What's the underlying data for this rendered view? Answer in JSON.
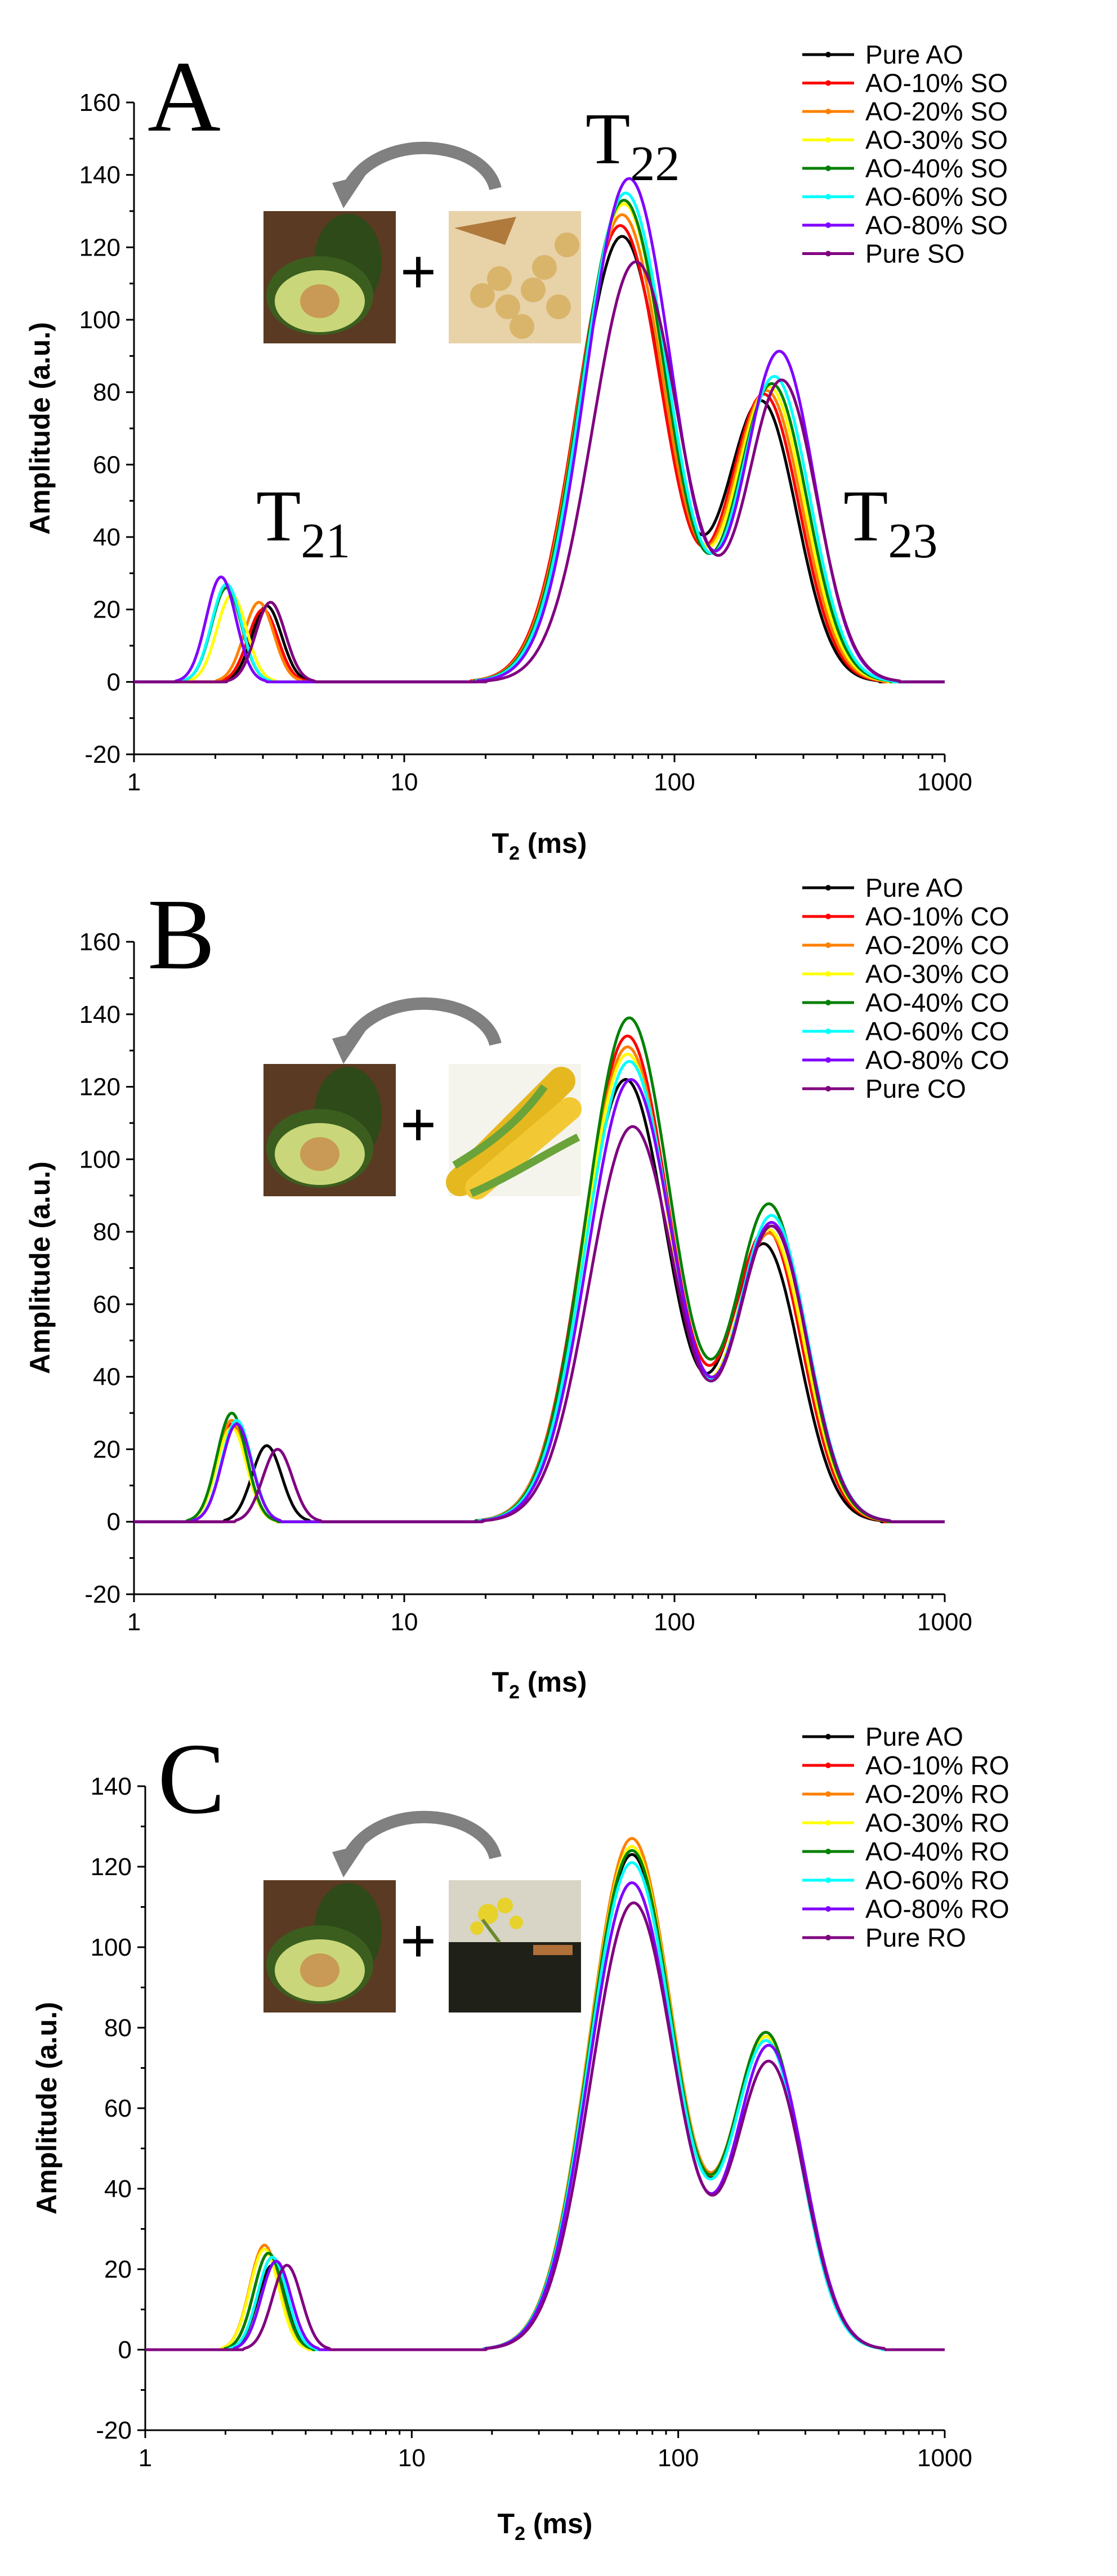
{
  "chart_data": [
    {
      "panel": "A",
      "type": "line",
      "xlabel": "T₂ (ms)",
      "ylabel": "Amplitude (a.u.)",
      "xscale": "log",
      "xlim": [
        1,
        1000
      ],
      "ylim": [
        -20,
        160
      ],
      "yticks": [
        -20,
        0,
        20,
        40,
        60,
        80,
        100,
        120,
        140,
        160
      ],
      "xticks": [
        1,
        10,
        100,
        1000
      ],
      "xtick_labels": [
        "1",
        "10",
        "100",
        "1000"
      ],
      "peak_labels": [
        {
          "base": "T",
          "sub": "21"
        },
        {
          "base": "T",
          "sub": "22"
        },
        {
          "base": "T",
          "sub": "23"
        }
      ],
      "image_icons": [
        "avocado-image",
        "soybean-image"
      ],
      "plus_sign": "+",
      "series": [
        {
          "name": "Pure AO",
          "color": "#000000",
          "peaks": [
            [
              3.1,
              21,
              0.055
            ],
            [
              64,
              123,
              0.16
            ],
            [
              210,
              77,
              0.13
            ]
          ]
        },
        {
          "name": "AO-10% SO",
          "color": "#ff0000",
          "peaks": [
            [
              3.0,
              20,
              0.055
            ],
            [
              63,
              126,
              0.16
            ],
            [
              215,
              79,
              0.13
            ]
          ]
        },
        {
          "name": "AO-20% SO",
          "color": "#ff8000",
          "peaks": [
            [
              2.9,
              22,
              0.055
            ],
            [
              64,
              129,
              0.16
            ],
            [
              220,
              80,
              0.13
            ]
          ]
        },
        {
          "name": "AO-30% SO",
          "color": "#ffff00",
          "peaks": [
            [
              2.3,
              24,
              0.055
            ],
            [
              65,
              132,
              0.16
            ],
            [
              225,
              81,
              0.13
            ]
          ]
        },
        {
          "name": "AO-40% SO",
          "color": "#008000",
          "peaks": [
            [
              2.2,
              26,
              0.055
            ],
            [
              65,
              133,
              0.16
            ],
            [
              230,
              82,
              0.13
            ]
          ]
        },
        {
          "name": "AO-60% SO",
          "color": "#00ffff",
          "peaks": [
            [
              2.2,
              27,
              0.055
            ],
            [
              66,
              135,
              0.16
            ],
            [
              235,
              84,
              0.13
            ]
          ]
        },
        {
          "name": "AO-80% SO",
          "color": "#8000ff",
          "peaks": [
            [
              2.1,
              29,
              0.055
            ],
            [
              68,
              139,
              0.16
            ],
            [
              245,
              91,
              0.13
            ]
          ]
        },
        {
          "name": "Pure SO",
          "color": "#800080",
          "peaks": [
            [
              3.2,
              22,
              0.055
            ],
            [
              72,
              116,
              0.16
            ],
            [
              250,
              83,
              0.13
            ]
          ]
        }
      ]
    },
    {
      "panel": "B",
      "type": "line",
      "xlabel": "T₂ (ms)",
      "ylabel": "Amplitude (a.u.)",
      "xscale": "log",
      "xlim": [
        1,
        1000
      ],
      "ylim": [
        -20,
        160
      ],
      "yticks": [
        -20,
        0,
        20,
        40,
        60,
        80,
        100,
        120,
        140,
        160
      ],
      "xticks": [
        1,
        10,
        100,
        1000
      ],
      "xtick_labels": [
        "1",
        "10",
        "100",
        "1000"
      ],
      "peak_labels": [],
      "image_icons": [
        "avocado-image",
        "corn-image"
      ],
      "plus_sign": "+",
      "series": [
        {
          "name": "Pure AO",
          "color": "#000000",
          "peaks": [
            [
              3.1,
              21,
              0.055
            ],
            [
              66,
              122,
              0.16
            ],
            [
              215,
              76,
              0.13
            ]
          ]
        },
        {
          "name": "AO-10% CO",
          "color": "#ff0000",
          "peaks": [
            [
              2.3,
              27,
              0.055
            ],
            [
              67,
              134,
              0.16
            ],
            [
              220,
              80,
              0.13
            ]
          ]
        },
        {
          "name": "AO-20% CO",
          "color": "#ff8000",
          "peaks": [
            [
              2.3,
              28,
              0.055
            ],
            [
              67,
              131,
              0.16
            ],
            [
              225,
              79,
              0.13
            ]
          ]
        },
        {
          "name": "AO-30% CO",
          "color": "#ffff00",
          "peaks": [
            [
              2.3,
              26,
              0.055
            ],
            [
              67,
              129,
              0.16
            ],
            [
              225,
              80,
              0.13
            ]
          ]
        },
        {
          "name": "AO-40% CO",
          "color": "#008000",
          "peaks": [
            [
              2.3,
              30,
              0.055
            ],
            [
              68,
              139,
              0.16
            ],
            [
              225,
              87,
              0.13
            ]
          ]
        },
        {
          "name": "AO-60% CO",
          "color": "#00ffff",
          "peaks": [
            [
              2.4,
              28,
              0.055
            ],
            [
              68,
              127,
              0.16
            ],
            [
              230,
              84,
              0.13
            ]
          ]
        },
        {
          "name": "AO-80% CO",
          "color": "#8000ff",
          "peaks": [
            [
              2.4,
              27,
              0.055
            ],
            [
              69,
              122,
              0.16
            ],
            [
              230,
              82,
              0.13
            ]
          ]
        },
        {
          "name": "Pure CO",
          "color": "#800080",
          "peaks": [
            [
              3.4,
              20,
              0.055
            ],
            [
              70,
              109,
              0.16
            ],
            [
              230,
              81,
              0.13
            ]
          ]
        }
      ]
    },
    {
      "panel": "C",
      "type": "line",
      "xlabel": "T₂ (ms)",
      "ylabel": "Amplitude (a.u.)",
      "xscale": "log",
      "xlim": [
        1,
        1000
      ],
      "ylim": [
        -20,
        140
      ],
      "yticks": [
        -20,
        0,
        20,
        40,
        60,
        80,
        100,
        120,
        140
      ],
      "xticks": [
        1,
        10,
        100,
        1000
      ],
      "xtick_labels": [
        "1",
        "10",
        "100",
        "1000"
      ],
      "peak_labels": [],
      "image_icons": [
        "avocado-image",
        "rapeseed-image"
      ],
      "plus_sign": "+",
      "series": [
        {
          "name": "Pure AO",
          "color": "#000000",
          "peaks": [
            [
              3.0,
              21,
              0.055
            ],
            [
              67,
              123,
              0.16
            ],
            [
              215,
              77,
              0.13
            ]
          ]
        },
        {
          "name": "AO-10% RO",
          "color": "#ff0000",
          "peaks": [
            [
              2.9,
              24,
              0.055
            ],
            [
              67,
              125,
              0.16
            ],
            [
              215,
              77,
              0.13
            ]
          ]
        },
        {
          "name": "AO-20% RO",
          "color": "#ff8000",
          "peaks": [
            [
              2.8,
              26,
              0.055
            ],
            [
              67,
              127,
              0.16
            ],
            [
              215,
              78,
              0.13
            ]
          ]
        },
        {
          "name": "AO-30% RO",
          "color": "#ffff00",
          "peaks": [
            [
              2.8,
              25,
              0.055
            ],
            [
              67,
              125,
              0.16
            ],
            [
              215,
              77,
              0.13
            ]
          ]
        },
        {
          "name": "AO-40% RO",
          "color": "#008000",
          "peaks": [
            [
              2.9,
              24,
              0.055
            ],
            [
              67,
              124,
              0.16
            ],
            [
              215,
              78,
              0.13
            ]
          ]
        },
        {
          "name": "AO-60% RO",
          "color": "#00ffff",
          "peaks": [
            [
              3.0,
              23,
              0.055
            ],
            [
              67,
              121,
              0.16
            ],
            [
              215,
              76,
              0.13
            ]
          ]
        },
        {
          "name": "AO-80% RO",
          "color": "#8000ff",
          "peaks": [
            [
              3.1,
              22,
              0.055
            ],
            [
              67,
              116,
              0.16
            ],
            [
              220,
              75,
              0.13
            ]
          ]
        },
        {
          "name": "Pure RO",
          "color": "#800080",
          "peaks": [
            [
              3.4,
              21,
              0.055
            ],
            [
              68,
              111,
              0.16
            ],
            [
              220,
              71,
              0.13
            ]
          ]
        }
      ]
    }
  ]
}
